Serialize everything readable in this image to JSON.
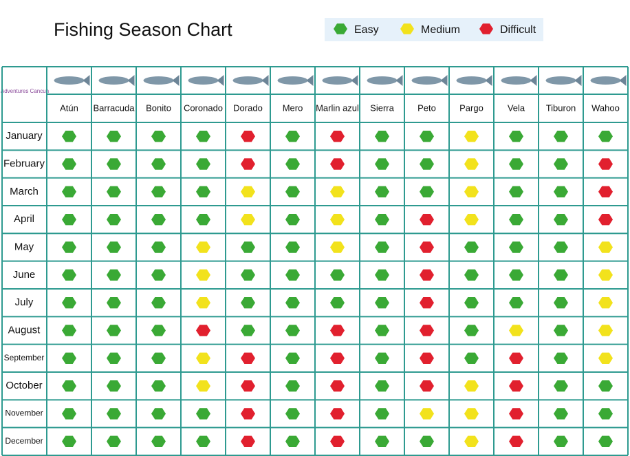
{
  "header": {
    "title": "Fishing Season Chart",
    "logo": "Adventures Cancun"
  },
  "legend": [
    {
      "label": "Easy",
      "color": "#3aa935"
    },
    {
      "label": "Medium",
      "color": "#f2e21c"
    },
    {
      "label": "Difficult",
      "color": "#e1202e"
    }
  ],
  "columns": [
    "Atún",
    "Barracuda",
    "Bonito",
    "Coronado",
    "Dorado",
    "Mero",
    "Marlin azul",
    "Sierra",
    "Peto",
    "Pargo",
    "Vela",
    "Tiburon",
    "Wahoo"
  ],
  "rows": [
    {
      "month": "January",
      "cells": [
        0,
        0,
        0,
        0,
        2,
        0,
        2,
        0,
        0,
        1,
        0,
        0,
        0
      ]
    },
    {
      "month": "February",
      "cells": [
        0,
        0,
        0,
        0,
        2,
        0,
        2,
        0,
        0,
        1,
        0,
        0,
        2
      ]
    },
    {
      "month": "March",
      "cells": [
        0,
        0,
        0,
        0,
        1,
        0,
        1,
        0,
        0,
        1,
        0,
        0,
        2
      ]
    },
    {
      "month": "April",
      "cells": [
        0,
        0,
        0,
        0,
        1,
        0,
        1,
        0,
        2,
        1,
        0,
        0,
        2
      ]
    },
    {
      "month": "May",
      "cells": [
        0,
        0,
        0,
        1,
        0,
        0,
        1,
        0,
        2,
        0,
        0,
        0,
        1
      ]
    },
    {
      "month": "June",
      "cells": [
        0,
        0,
        0,
        1,
        0,
        0,
        0,
        0,
        2,
        0,
        0,
        0,
        1
      ]
    },
    {
      "month": "July",
      "cells": [
        0,
        0,
        0,
        1,
        0,
        0,
        0,
        0,
        2,
        0,
        0,
        0,
        1
      ]
    },
    {
      "month": "August",
      "cells": [
        0,
        0,
        0,
        2,
        0,
        0,
        2,
        0,
        2,
        0,
        1,
        0,
        1
      ]
    },
    {
      "month": "September",
      "cells": [
        0,
        0,
        0,
        1,
        2,
        0,
        2,
        0,
        2,
        0,
        2,
        0,
        1
      ]
    },
    {
      "month": "October",
      "cells": [
        0,
        0,
        0,
        1,
        2,
        0,
        2,
        0,
        2,
        1,
        2,
        0,
        0
      ]
    },
    {
      "month": "November",
      "cells": [
        0,
        0,
        0,
        0,
        2,
        0,
        2,
        0,
        1,
        1,
        2,
        0,
        0
      ]
    },
    {
      "month": "December",
      "cells": [
        0,
        0,
        0,
        0,
        2,
        0,
        2,
        0,
        0,
        1,
        2,
        0,
        0
      ]
    }
  ]
}
